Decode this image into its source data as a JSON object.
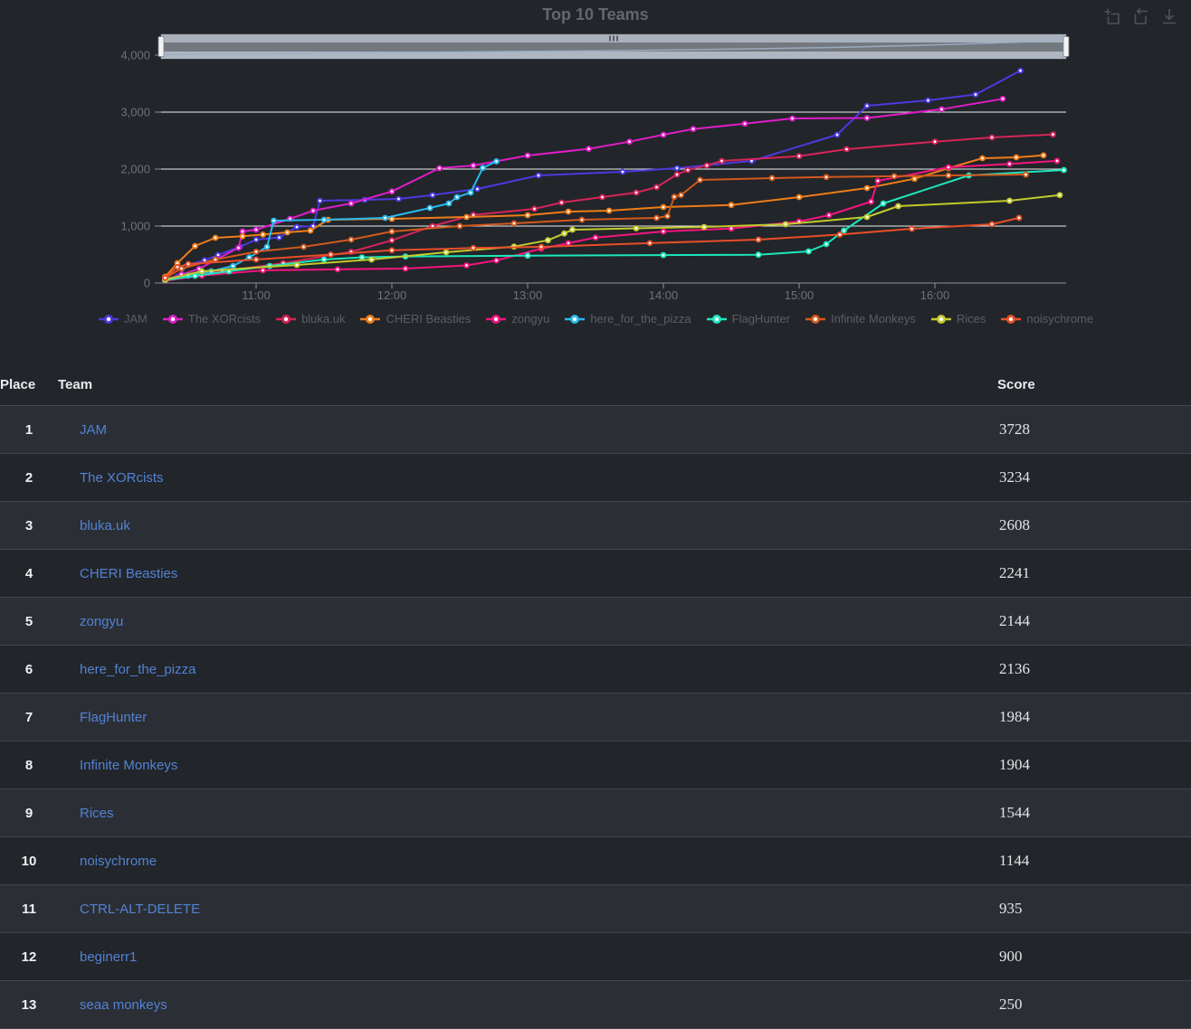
{
  "chart_data": {
    "type": "line",
    "title": "Top 10 Teams",
    "xlabel": "",
    "ylabel": "",
    "xlim_hours": [
      10.28,
      17.0
    ],
    "ylim": [
      0,
      4000
    ],
    "grid": true,
    "legend_position": "bottom",
    "x_ticks": [
      {
        "t": 11,
        "label": "11:00"
      },
      {
        "t": 12,
        "label": "12:00"
      },
      {
        "t": 13,
        "label": "13:00"
      },
      {
        "t": 14,
        "label": "14:00"
      },
      {
        "t": 15,
        "label": "15:00"
      },
      {
        "t": 16,
        "label": "16:00"
      }
    ],
    "y_ticks": [
      {
        "v": 0,
        "label": "0"
      },
      {
        "v": 1000,
        "label": "1,000"
      },
      {
        "v": 2000,
        "label": "2,000"
      },
      {
        "v": 3000,
        "label": "3,000"
      },
      {
        "v": 4000,
        "label": "4,000"
      }
    ],
    "series": [
      {
        "name": "JAM",
        "color": "#4b3ae0",
        "points": [
          [
            10.33,
            60
          ],
          [
            10.42,
            110
          ],
          [
            10.5,
            317
          ],
          [
            10.62,
            400
          ],
          [
            10.72,
            492
          ],
          [
            10.88,
            635
          ],
          [
            11.0,
            762
          ],
          [
            11.17,
            800
          ],
          [
            11.3,
            984
          ],
          [
            11.42,
            1000
          ],
          [
            11.47,
            1444
          ],
          [
            11.8,
            1460
          ],
          [
            12.05,
            1476
          ],
          [
            12.3,
            1544
          ],
          [
            12.63,
            1651
          ],
          [
            13.08,
            1889
          ],
          [
            13.7,
            1952
          ],
          [
            14.1,
            2016
          ],
          [
            14.65,
            2143
          ],
          [
            15.28,
            2603
          ],
          [
            15.5,
            3111
          ],
          [
            15.95,
            3206
          ],
          [
            16.3,
            3310
          ],
          [
            16.63,
            3728
          ]
        ]
      },
      {
        "name": "The XORcists",
        "color": "#df1dc8",
        "points": [
          [
            10.33,
            50
          ],
          [
            10.45,
            150
          ],
          [
            10.58,
            250
          ],
          [
            10.87,
            619
          ],
          [
            10.9,
            905
          ],
          [
            11.0,
            937
          ],
          [
            11.25,
            1127
          ],
          [
            11.42,
            1270
          ],
          [
            11.7,
            1397
          ],
          [
            12.0,
            1608
          ],
          [
            12.35,
            2016
          ],
          [
            12.6,
            2064
          ],
          [
            13.0,
            2238
          ],
          [
            13.45,
            2355
          ],
          [
            13.75,
            2481
          ],
          [
            14.0,
            2603
          ],
          [
            14.22,
            2703
          ],
          [
            14.6,
            2798
          ],
          [
            14.95,
            2889
          ],
          [
            15.5,
            2897
          ],
          [
            16.05,
            3050
          ],
          [
            16.5,
            3234
          ]
        ]
      },
      {
        "name": "bluka.uk",
        "color": "#d62458",
        "points": [
          [
            10.33,
            80
          ],
          [
            10.5,
            150
          ],
          [
            10.75,
            206
          ],
          [
            11.2,
            349
          ],
          [
            11.7,
            548
          ],
          [
            12.0,
            750
          ],
          [
            12.3,
            1000
          ],
          [
            12.6,
            1194
          ],
          [
            13.05,
            1302
          ],
          [
            13.25,
            1413
          ],
          [
            13.55,
            1508
          ],
          [
            13.8,
            1587
          ],
          [
            13.95,
            1683
          ],
          [
            14.1,
            1905
          ],
          [
            14.18,
            1984
          ],
          [
            14.32,
            2064
          ],
          [
            14.43,
            2143
          ],
          [
            15.0,
            2227
          ],
          [
            15.35,
            2349
          ],
          [
            16.0,
            2481
          ],
          [
            16.42,
            2556
          ],
          [
            16.87,
            2608
          ]
        ]
      },
      {
        "name": "CHERI Beasties",
        "color": "#ef7d18",
        "points": [
          [
            10.33,
            110
          ],
          [
            10.42,
            349
          ],
          [
            10.55,
            650
          ],
          [
            10.7,
            794
          ],
          [
            10.9,
            820
          ],
          [
            11.05,
            850
          ],
          [
            11.23,
            889
          ],
          [
            11.4,
            921
          ],
          [
            11.53,
            1111
          ],
          [
            12.0,
            1127
          ],
          [
            12.55,
            1159
          ],
          [
            13.0,
            1190
          ],
          [
            13.3,
            1254
          ],
          [
            13.6,
            1270
          ],
          [
            14.0,
            1333
          ],
          [
            14.5,
            1370
          ],
          [
            15.0,
            1508
          ],
          [
            15.5,
            1667
          ],
          [
            15.85,
            1830
          ],
          [
            16.1,
            2016
          ],
          [
            16.35,
            2190
          ],
          [
            16.6,
            2206
          ],
          [
            16.8,
            2241
          ]
        ]
      },
      {
        "name": "zongyu",
        "color": "#f4147f",
        "points": [
          [
            10.33,
            40
          ],
          [
            10.6,
            130
          ],
          [
            11.05,
            222
          ],
          [
            11.6,
            240
          ],
          [
            12.1,
            254
          ],
          [
            12.55,
            310
          ],
          [
            12.77,
            397
          ],
          [
            13.1,
            603
          ],
          [
            13.3,
            700
          ],
          [
            13.5,
            798
          ],
          [
            14.0,
            905
          ],
          [
            14.5,
            957
          ],
          [
            15.0,
            1079
          ],
          [
            15.22,
            1190
          ],
          [
            15.53,
            1429
          ],
          [
            15.58,
            1794
          ],
          [
            16.1,
            2032
          ],
          [
            16.55,
            2090
          ],
          [
            16.9,
            2144
          ]
        ]
      },
      {
        "name": "here_for_the_pizza",
        "color": "#29b9ee",
        "points": [
          [
            10.33,
            70
          ],
          [
            10.5,
            130
          ],
          [
            10.67,
            206
          ],
          [
            10.83,
            300
          ],
          [
            10.95,
            450
          ],
          [
            11.08,
            635
          ],
          [
            11.13,
            1095
          ],
          [
            11.5,
            1111
          ],
          [
            11.95,
            1143
          ],
          [
            12.28,
            1317
          ],
          [
            12.42,
            1397
          ],
          [
            12.48,
            1508
          ],
          [
            12.58,
            1587
          ],
          [
            12.67,
            2021
          ],
          [
            12.77,
            2136
          ]
        ]
      },
      {
        "name": "FlagHunter",
        "color": "#1ce8bc",
        "points": [
          [
            10.33,
            50
          ],
          [
            10.55,
            127
          ],
          [
            10.8,
            206
          ],
          [
            11.1,
            300
          ],
          [
            11.5,
            413
          ],
          [
            11.78,
            450
          ],
          [
            12.1,
            466
          ],
          [
            13.0,
            481
          ],
          [
            14.0,
            490
          ],
          [
            14.7,
            497
          ],
          [
            15.07,
            556
          ],
          [
            15.2,
            683
          ],
          [
            15.33,
            921
          ],
          [
            15.62,
            1397
          ],
          [
            16.25,
            1889
          ],
          [
            16.95,
            1984
          ]
        ]
      },
      {
        "name": "Infinite Monkeys",
        "color": "#d2591c",
        "points": [
          [
            10.33,
            90
          ],
          [
            10.45,
            254
          ],
          [
            10.7,
            413
          ],
          [
            11.0,
            550
          ],
          [
            11.35,
            635
          ],
          [
            11.7,
            762
          ],
          [
            12.0,
            905
          ],
          [
            12.5,
            1000
          ],
          [
            12.9,
            1048
          ],
          [
            13.4,
            1111
          ],
          [
            13.95,
            1143
          ],
          [
            14.03,
            1175
          ],
          [
            14.08,
            1513
          ],
          [
            14.13,
            1544
          ],
          [
            14.27,
            1810
          ],
          [
            14.8,
            1842
          ],
          [
            15.2,
            1860
          ],
          [
            15.7,
            1875
          ],
          [
            16.1,
            1889
          ],
          [
            16.67,
            1904
          ]
        ]
      },
      {
        "name": "Rices",
        "color": "#c3cb2b",
        "points": [
          [
            10.33,
            60
          ],
          [
            10.6,
            206
          ],
          [
            11.3,
            317
          ],
          [
            11.85,
            413
          ],
          [
            12.4,
            540
          ],
          [
            12.9,
            640
          ],
          [
            13.15,
            751
          ],
          [
            13.27,
            870
          ],
          [
            13.33,
            937
          ],
          [
            13.8,
            960
          ],
          [
            14.3,
            984
          ],
          [
            14.9,
            1032
          ],
          [
            15.5,
            1159
          ],
          [
            15.73,
            1349
          ],
          [
            16.55,
            1444
          ],
          [
            16.92,
            1544
          ]
        ]
      },
      {
        "name": "noisychrome",
        "color": "#e94e28",
        "points": [
          [
            10.33,
            90
          ],
          [
            10.42,
            280
          ],
          [
            10.5,
            333
          ],
          [
            11.0,
            413
          ],
          [
            11.55,
            500
          ],
          [
            12.0,
            575
          ],
          [
            12.6,
            615
          ],
          [
            13.1,
            635
          ],
          [
            13.9,
            700
          ],
          [
            14.7,
            762
          ],
          [
            15.3,
            850
          ],
          [
            15.83,
            952
          ],
          [
            16.42,
            1032
          ],
          [
            16.62,
            1144
          ]
        ]
      }
    ]
  },
  "toolbar": {
    "icons": [
      "box-zoom-icon",
      "reset-zoom-icon",
      "download-icon"
    ]
  },
  "navigator": {
    "range_start_pct": 0,
    "range_end_pct": 100
  },
  "table": {
    "headers": [
      "Place",
      "Team",
      "Score"
    ],
    "rows": [
      {
        "place": "1",
        "team": "JAM",
        "score": "3728"
      },
      {
        "place": "2",
        "team": "The XORcists",
        "score": "3234"
      },
      {
        "place": "3",
        "team": "bluka.uk",
        "score": "2608"
      },
      {
        "place": "4",
        "team": "CHERI Beasties",
        "score": "2241"
      },
      {
        "place": "5",
        "team": "zongyu",
        "score": "2144"
      },
      {
        "place": "6",
        "team": "here_for_the_pizza",
        "score": "2136"
      },
      {
        "place": "7",
        "team": "FlagHunter",
        "score": "1984"
      },
      {
        "place": "8",
        "team": "Infinite Monkeys",
        "score": "1904"
      },
      {
        "place": "9",
        "team": "Rices",
        "score": "1544"
      },
      {
        "place": "10",
        "team": "noisychrome",
        "score": "1144"
      },
      {
        "place": "11",
        "team": "CTRL-ALT-DELETE",
        "score": "935"
      },
      {
        "place": "12",
        "team": "beginerr1",
        "score": "900"
      },
      {
        "place": "13",
        "team": "seaa monkeys",
        "score": "250"
      }
    ]
  },
  "colors": {
    "background": "#22252a",
    "row_alt": "#2b2f35",
    "gridline": "#eceef0",
    "axis": "#8d939a",
    "tick_label": "#6e737a",
    "team_link": "#5282d4",
    "title": "#63686f"
  }
}
